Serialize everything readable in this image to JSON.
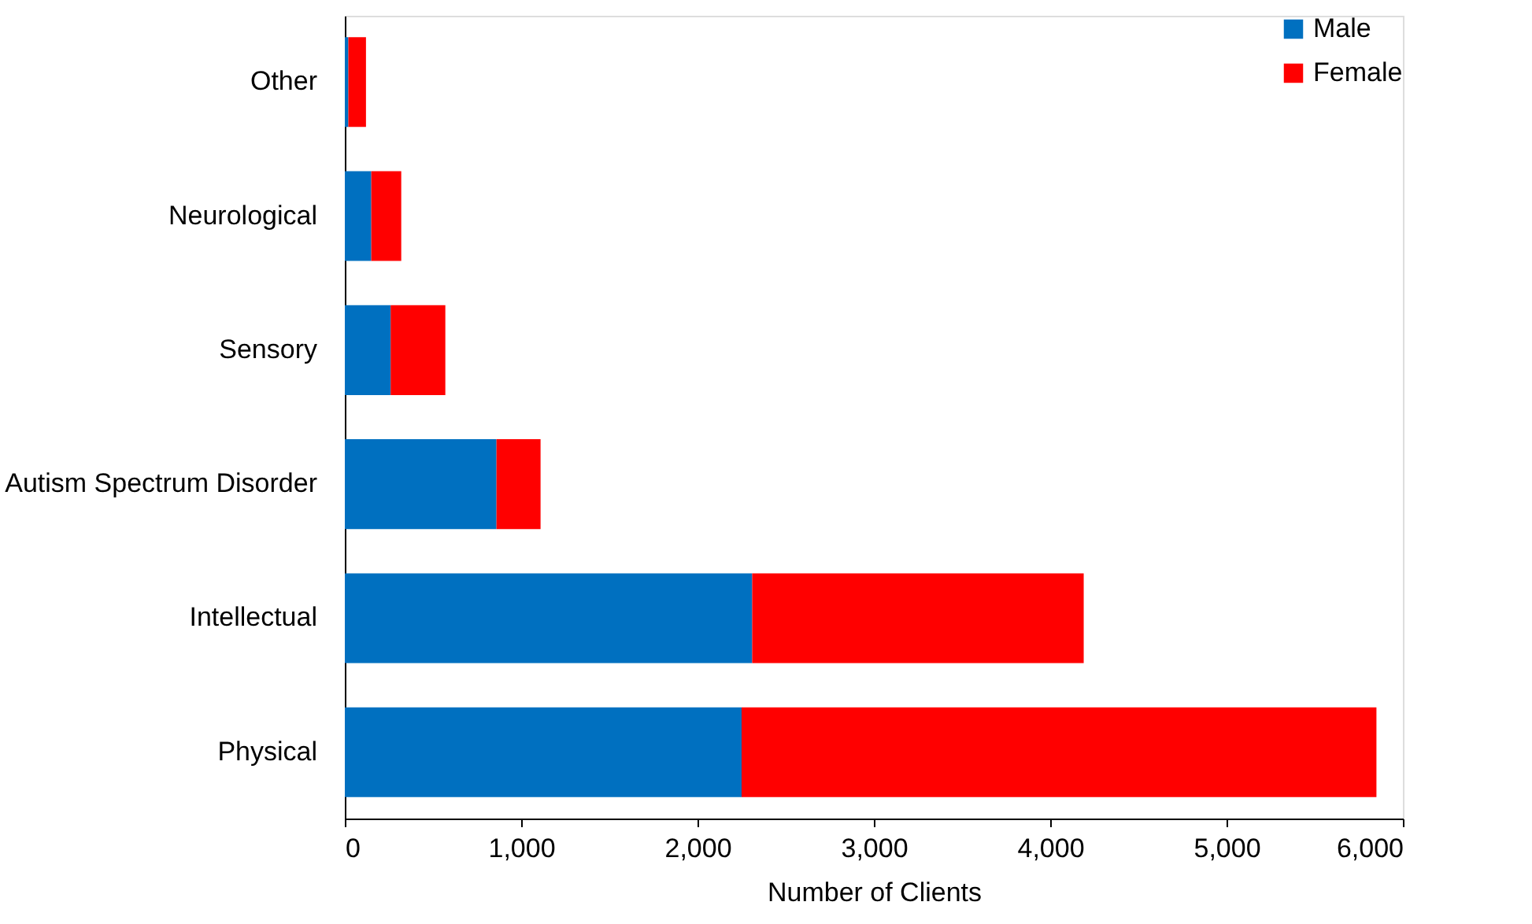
{
  "chart_data": {
    "type": "bar",
    "orientation": "horizontal",
    "stacked": true,
    "xlabel": "Number  of Clients",
    "categories": [
      "Other",
      "Neurological",
      "Sensory",
      "Autism Spectrum Disorder",
      "Intellectual",
      "Physical"
    ],
    "series": [
      {
        "name": "Male",
        "color": "#0070c0",
        "values": [
          20,
          150,
          260,
          860,
          2310,
          2250
        ]
      },
      {
        "name": "Female",
        "color": "#ff0000",
        "values": [
          100,
          170,
          310,
          250,
          1880,
          3600
        ]
      }
    ],
    "xlim": [
      0,
      6000
    ],
    "xticks": [
      {
        "value": 0,
        "label": "0"
      },
      {
        "value": 1000,
        "label": "1,000"
      },
      {
        "value": 2000,
        "label": "2,000"
      },
      {
        "value": 3000,
        "label": "3,000"
      },
      {
        "value": 4000,
        "label": "4,000"
      },
      {
        "value": 5000,
        "label": "5,000"
      },
      {
        "value": 6000,
        "label": "6,000"
      }
    ],
    "grid": false,
    "legend": "top right"
  }
}
